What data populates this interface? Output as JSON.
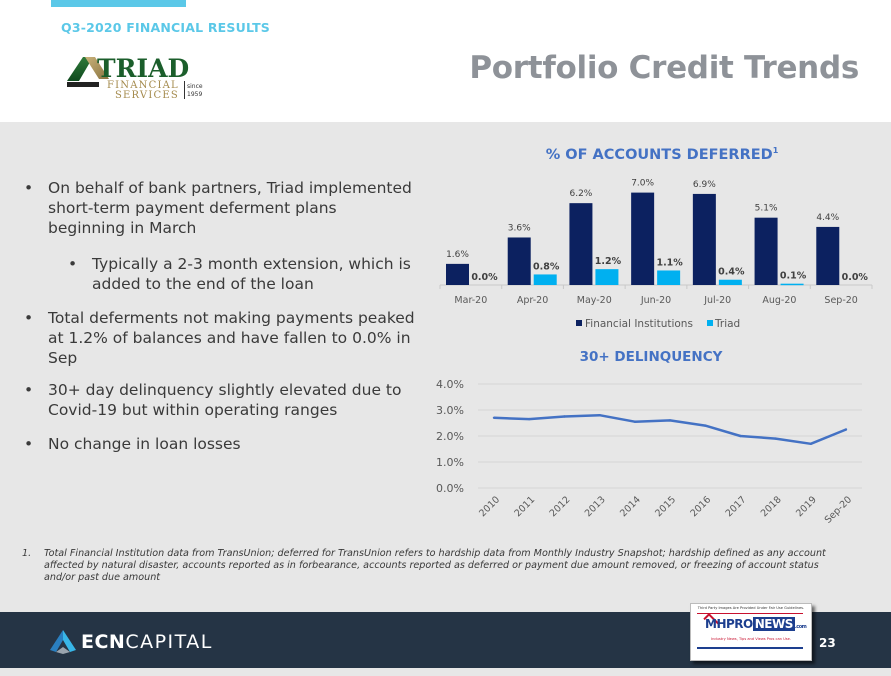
{
  "header": {
    "subtitle": "Q3-2020 FINANCIAL RESULTS",
    "title": "Portfolio Credit Trends",
    "logo": {
      "name": "TRIAD",
      "line1": "FINANCIAL",
      "line2": "SERVICES",
      "since_label": "since",
      "since_year": "1959"
    }
  },
  "bullets": [
    {
      "level": 1,
      "text": "On behalf of bank partners, Triad implemented short-term payment deferment plans beginning in March"
    },
    {
      "level": 2,
      "text": "Typically a 2-3 month extension, which is added to the end of the loan"
    },
    {
      "level": 1,
      "text": "Total deferments not making payments peaked at 1.2% of balances and have fallen to 0.0% in Sep"
    },
    {
      "level": 1,
      "text": "30+ day delinquency slightly elevated due to Covid-19 but within operating ranges"
    },
    {
      "level": 1,
      "text": "No change in loan losses"
    }
  ],
  "bullet_glyph": "•",
  "footnote": {
    "number": "1.",
    "text": "Total Financial Institution data from TransUnion; deferred for TransUnion refers to hardship data from Monthly Industry Snapshot; hardship defined as any account affected by natural disaster, accounts reported as in forbearance, accounts reported as deferred or payment due amount removed, or freezing of account status and/or past due amount"
  },
  "footer": {
    "brand_bold": "ECN",
    "brand_light": "CAPITAL",
    "page_number": "23",
    "watermark": {
      "top_text": "Third Party Images Are Provided Under Fair Use Guidelines.",
      "brand_a": "MHPRO",
      "brand_b": "NEWS",
      "brand_c": ".com",
      "tagline": "Industry News, Tips and Views Pros can Use."
    }
  },
  "colors": {
    "fi_bar": "#0c2160",
    "triad_bar": "#00b0f0",
    "line": "#4472c4",
    "chart_title": "#4472c4",
    "grid": "#d6d6d6",
    "axis_text": "#595959"
  },
  "chart_data": [
    {
      "type": "bar",
      "title": "% OF ACCOUNTS DEFERRED",
      "title_superscript": "1",
      "categories": [
        "Mar-20",
        "Apr-20",
        "May-20",
        "Jun-20",
        "Jul-20",
        "Aug-20",
        "Sep-20"
      ],
      "series": [
        {
          "name": "Financial Institutions",
          "values": [
            1.6,
            3.6,
            6.2,
            7.0,
            6.9,
            5.1,
            4.4
          ],
          "labels": [
            "1.6%",
            "3.6%",
            "6.2%",
            "7.0%",
            "6.9%",
            "5.1%",
            "4.4%"
          ]
        },
        {
          "name": "Triad",
          "values": [
            0.0,
            0.8,
            1.2,
            1.1,
            0.4,
            0.1,
            0.0
          ],
          "labels": [
            "0.0%",
            "0.8%",
            "1.2%",
            "1.1%",
            "0.4%",
            "0.1%",
            "0.0%"
          ]
        }
      ],
      "ylim": [
        0,
        7.0
      ],
      "legend": "bottom",
      "grid": false
    },
    {
      "type": "line",
      "title": "30+ DELINQUENCY",
      "x": [
        "2010",
        "2011",
        "2012",
        "2013",
        "2014",
        "2015",
        "2016",
        "2017",
        "2018",
        "2019",
        "Sep-20"
      ],
      "series": [
        {
          "name": "30+ Delinquency",
          "values": [
            2.7,
            2.65,
            2.75,
            2.8,
            2.55,
            2.6,
            2.4,
            2.0,
            1.9,
            1.7,
            2.25
          ]
        }
      ],
      "yticks": [
        "0.0%",
        "1.0%",
        "2.0%",
        "3.0%",
        "4.0%"
      ],
      "ylim": [
        0,
        4
      ],
      "grid": true,
      "legend": "none"
    }
  ]
}
